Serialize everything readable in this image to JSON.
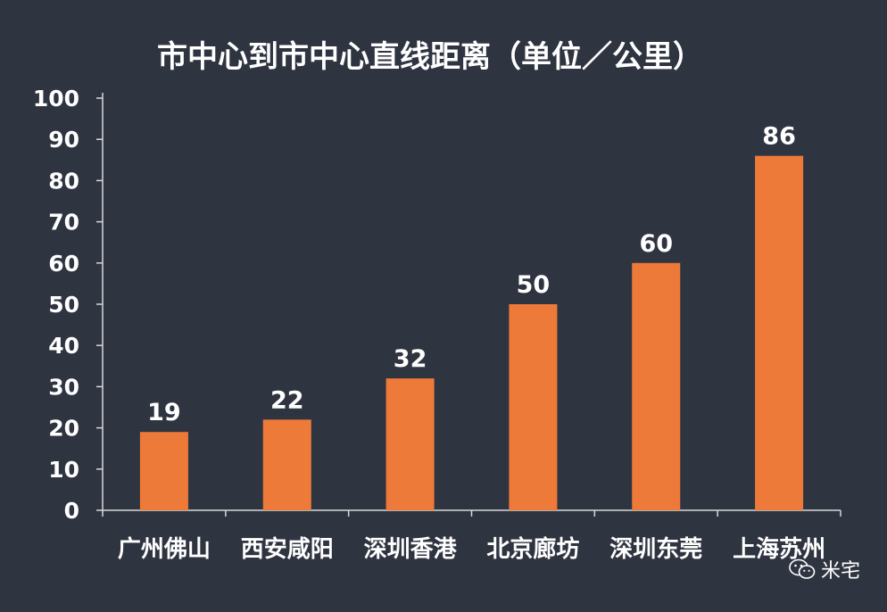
{
  "chart_data": {
    "type": "bar",
    "title": "市中心到市中心直线距离（单位／公里）",
    "categories": [
      "广州佛山",
      "西安咸阳",
      "深圳香港",
      "北京廊坊",
      "深圳东莞",
      "上海苏州"
    ],
    "values": [
      19,
      22,
      32,
      50,
      60,
      86
    ],
    "xlabel": "",
    "ylabel": "",
    "ylim": [
      0,
      100
    ],
    "yticks": [
      0,
      10,
      20,
      30,
      40,
      50,
      60,
      70,
      80,
      90,
      100
    ],
    "grid": false,
    "legend": "none",
    "colors": {
      "background": "#2f3441",
      "bar": "#ee7a3a",
      "text": "#ffffff",
      "axis": "#d8d8d8"
    }
  },
  "watermark": {
    "icon": "wechat-icon",
    "text": "米宅"
  }
}
